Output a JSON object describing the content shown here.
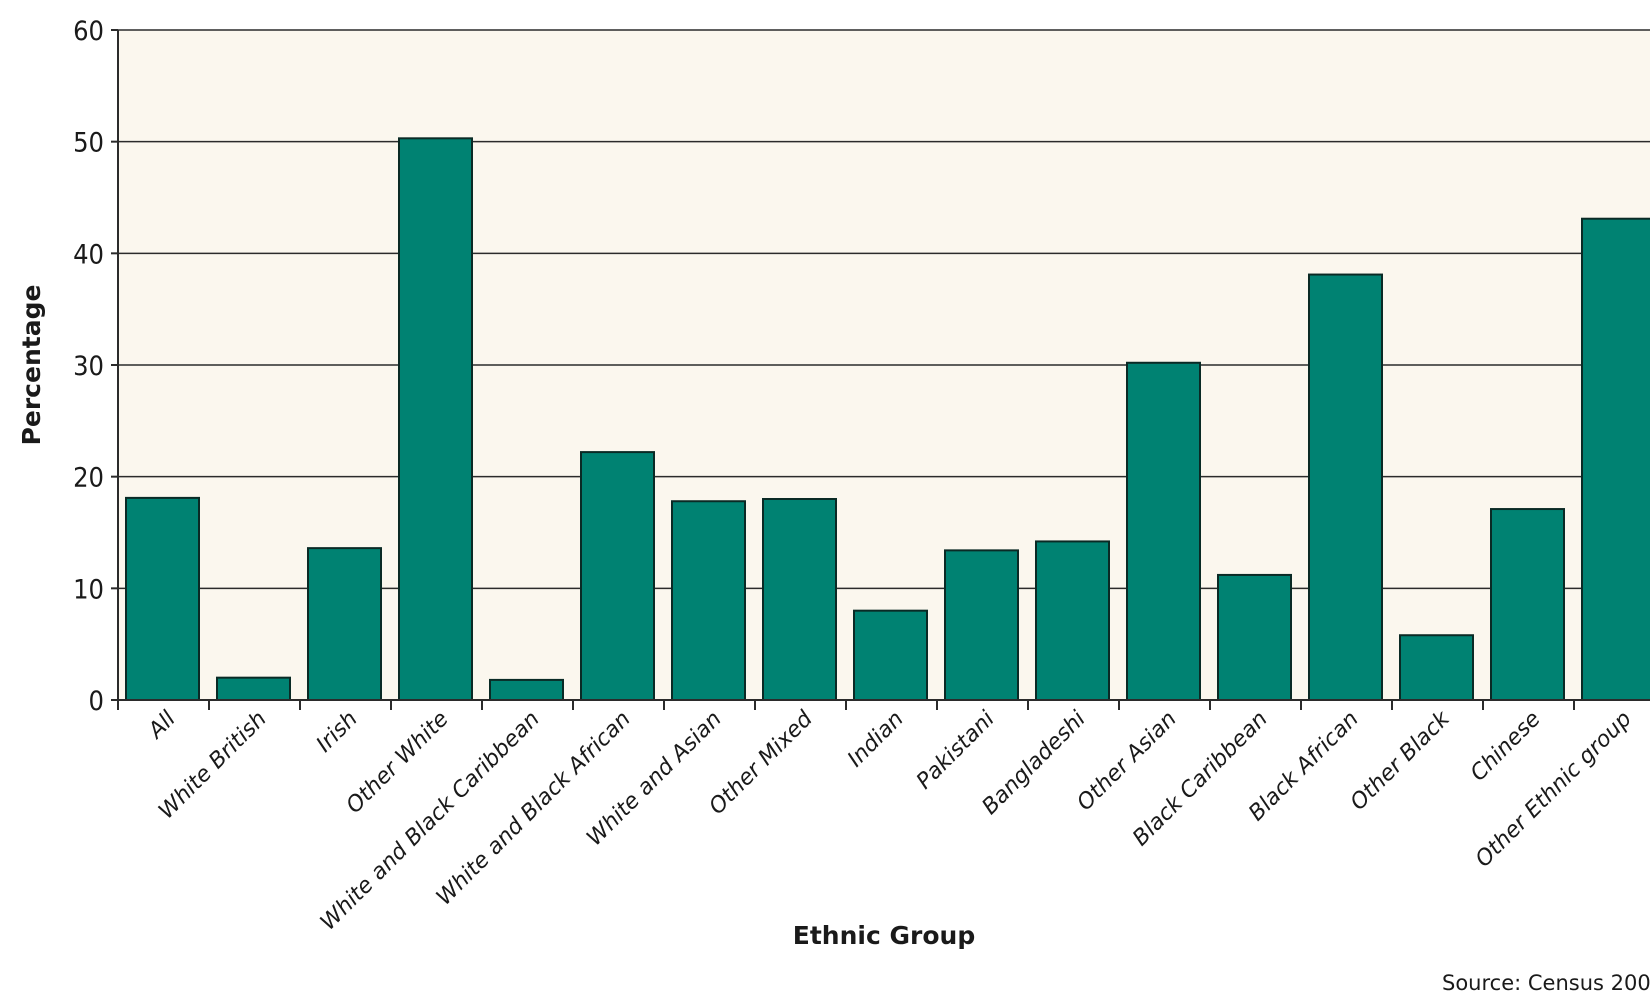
{
  "chart_data": {
    "type": "bar",
    "categories": [
      "All",
      "White British",
      "Irish",
      "Other White",
      "White and Black Caribbean",
      "White and Black African",
      "White and Asian",
      "Other Mixed",
      "Indian",
      "Pakistani",
      "Bangladeshi",
      "Other Asian",
      "Black Caribbean",
      "Black African",
      "Other Black",
      "Chinese",
      "Other Ethnic group"
    ],
    "values": [
      18.1,
      2.0,
      13.6,
      50.3,
      1.8,
      22.2,
      17.8,
      18.0,
      8.0,
      13.4,
      14.2,
      30.2,
      11.2,
      38.1,
      5.8,
      17.1,
      43.1
    ],
    "xlabel": "Ethnic Group",
    "ylabel": "Percentage",
    "ylim": [
      0,
      60
    ],
    "yticks": [
      "0",
      "10",
      "20",
      "30",
      "40",
      "50",
      "60"
    ],
    "grid": true,
    "source": "Source: Census 200",
    "colors": {
      "bar": "#008272",
      "bar_edge": "#0a2a25",
      "plot_bg": "#fbf7ee",
      "grid": "#2b2b2b"
    }
  }
}
